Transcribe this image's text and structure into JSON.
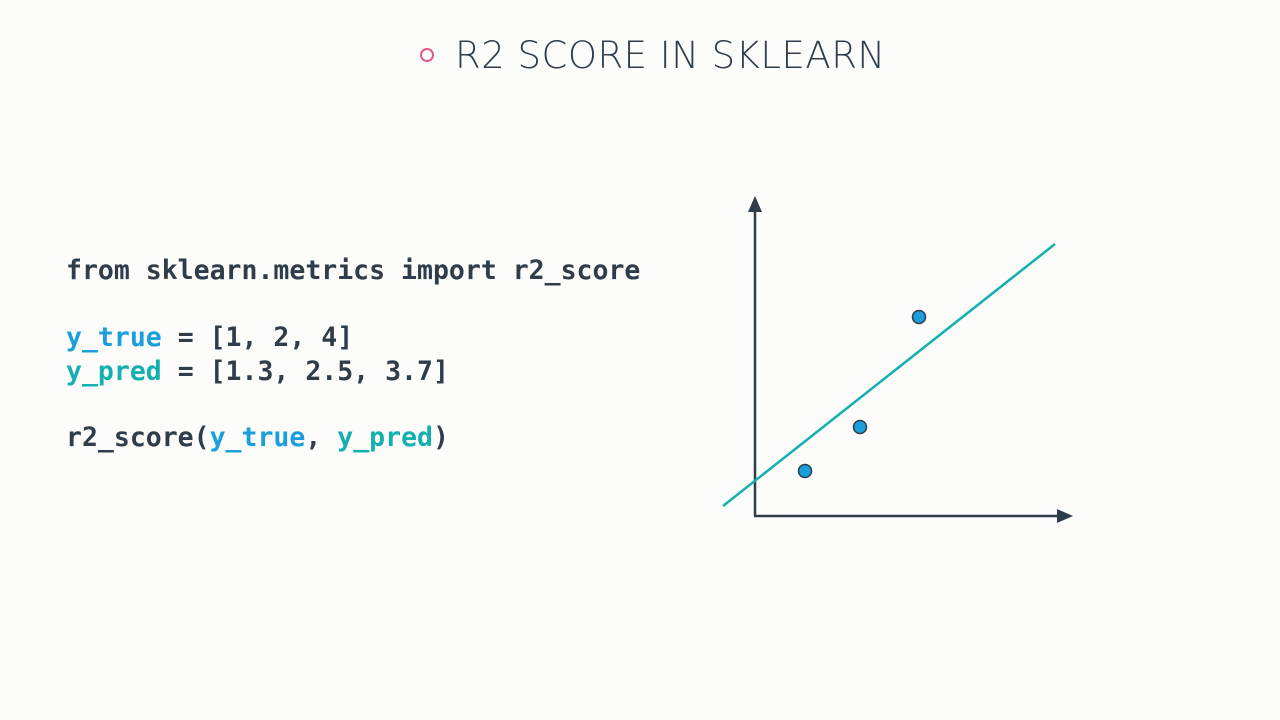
{
  "header": {
    "title": "R2 SCORE IN SKLEARN"
  },
  "code": {
    "lines": [
      [
        "from sklearn.metrics import r2_score"
      ],
      [
        "y_true",
        " = [1, 2, 4]"
      ],
      [
        "y_pred",
        " = [1.3, 2.5, 3.7]"
      ],
      [
        "r2_score(",
        "y_true",
        ", ",
        "y_pred",
        ")"
      ]
    ]
  }
}
